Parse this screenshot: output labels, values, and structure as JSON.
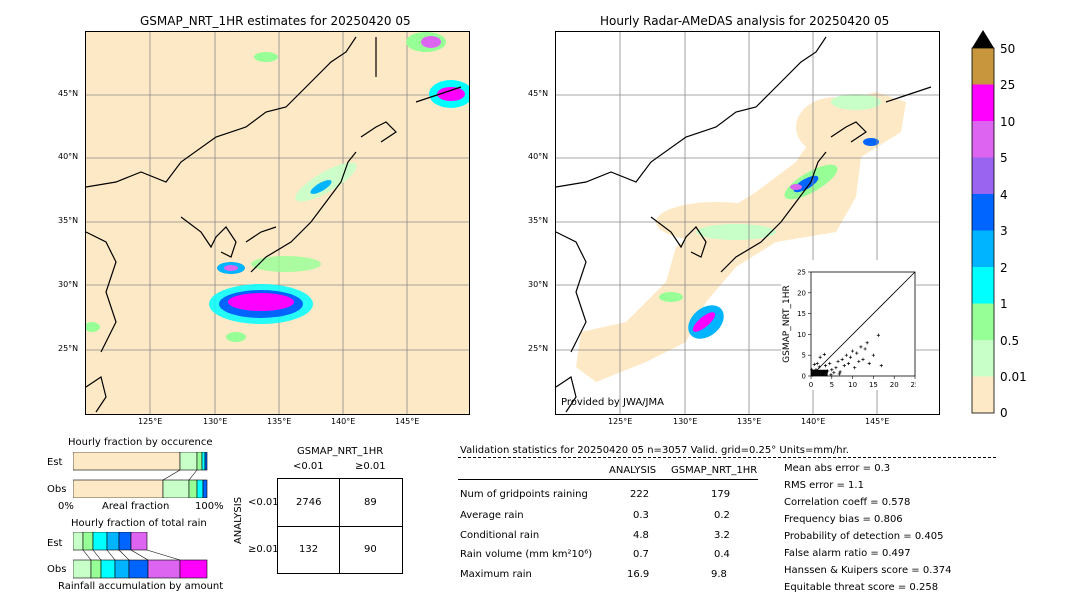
{
  "left_map": {
    "title": "GSMAP_NRT_1HR estimates for 20250420 05",
    "lat_labels": [
      "45°N",
      "40°N",
      "35°N",
      "30°N",
      "25°N"
    ],
    "lon_labels": [
      "125°E",
      "130°E",
      "135°E",
      "140°E",
      "145°E"
    ]
  },
  "right_map": {
    "title": "Hourly Radar-AMeDAS analysis for 20250420 05",
    "lat_labels": [
      "45°N",
      "40°N",
      "35°N",
      "30°N",
      "25°N"
    ],
    "lon_labels": [
      "125°E",
      "130°E",
      "135°E",
      "140°E",
      "145°E"
    ],
    "credit": "Provided by JWA/JMA"
  },
  "colorbar": {
    "labels": [
      "50",
      "25",
      "10",
      "5",
      "4",
      "3",
      "2",
      "1",
      "0.5",
      "0.01",
      "0"
    ],
    "colors": [
      "#c8963c",
      "#ff00ff",
      "#dc64f0",
      "#9a64f0",
      "#0064ff",
      "#00b4ff",
      "#00ffff",
      "#96ff96",
      "#c8ffc8",
      "#fde9c5"
    ]
  },
  "occurrence": {
    "title": "Hourly fraction by occurence",
    "row_est": "Est",
    "row_obs": "Obs",
    "axis_left": "0%",
    "axis_mid": "Areal fraction",
    "axis_right": "100%"
  },
  "total_rain": {
    "title": "Hourly fraction of total rain",
    "row_est": "Est",
    "row_obs": "Obs",
    "axis_label": "Rainfall accumulation by amount"
  },
  "contingency": {
    "title": "GSMAP_NRT_1HR",
    "col_lt": "<0.01",
    "col_ge": "≥0.01",
    "row_lt": "<0.01",
    "row_ge": "≥0.01",
    "side_label": "ANALYSIS",
    "cells": [
      "2746",
      "89",
      "132",
      "90"
    ]
  },
  "validation": {
    "header": "Validation statistics for 20250420 05  n=3057 Valid. grid=0.25° Units=mm/hr.",
    "col1": "ANALYSIS",
    "col2": "GSMAP_NRT_1HR",
    "rows": [
      {
        "label": "Num of gridpoints raining",
        "a": "222",
        "g": "179"
      },
      {
        "label": "Average rain",
        "a": "0.3",
        "g": "0.2"
      },
      {
        "label": "Conditional rain",
        "a": "4.8",
        "g": "3.2"
      },
      {
        "label": "Rain volume (mm km²10⁶)",
        "a": "0.7",
        "g": "0.4"
      },
      {
        "label": "Maximum rain",
        "a": "16.9",
        "g": "9.8"
      }
    ],
    "scores": [
      "Mean abs error =    0.3",
      "RMS error =    1.1",
      "Correlation coeff =  0.578",
      "Frequency bias =  0.806",
      "Probability of detection =  0.405",
      "False alarm ratio =  0.497",
      "Hanssen & Kuipers score =  0.374",
      "Equitable threat score =  0.258"
    ]
  },
  "chart_data": {
    "type": "scatter",
    "title": "",
    "xlabel": "ANALYSIS",
    "ylabel": "GSMAP_NRT_1HR",
    "xlim": [
      0,
      25
    ],
    "ylim": [
      0,
      25
    ],
    "xticks": [
      "0",
      "5",
      "10",
      "15",
      "20",
      "25"
    ],
    "yticks": [
      "0",
      "5",
      "10",
      "15",
      "20",
      "25"
    ],
    "points": [
      [
        0.3,
        0.2
      ],
      [
        0.5,
        0.8
      ],
      [
        1,
        0.5
      ],
      [
        1.2,
        1.5
      ],
      [
        1.8,
        0.4
      ],
      [
        2,
        2.2
      ],
      [
        2.5,
        1
      ],
      [
        3,
        0.6
      ],
      [
        3.5,
        2.5
      ],
      [
        4,
        1.2
      ],
      [
        4.5,
        3
      ],
      [
        5,
        1.5
      ],
      [
        5.5,
        0.8
      ],
      [
        6,
        2
      ],
      [
        6.5,
        3.5
      ],
      [
        7,
        1
      ],
      [
        7.5,
        4
      ],
      [
        8,
        2.5
      ],
      [
        8.5,
        5
      ],
      [
        9,
        3
      ],
      [
        9.5,
        4.5
      ],
      [
        10,
        6
      ],
      [
        10.5,
        2
      ],
      [
        11,
        5.5
      ],
      [
        11.5,
        3.5
      ],
      [
        12,
        7
      ],
      [
        12.5,
        4
      ],
      [
        13,
        6.5
      ],
      [
        13.5,
        8
      ],
      [
        14,
        3
      ],
      [
        15,
        5
      ],
      [
        16.2,
        9.8
      ],
      [
        16.9,
        2.5
      ],
      [
        1.5,
        3
      ],
      [
        2.2,
        4.5
      ],
      [
        0.8,
        2.8
      ],
      [
        3.2,
        5.2
      ],
      [
        0.2,
        1.5
      ],
      [
        4.8,
        0.3
      ],
      [
        6.8,
        0.5
      ]
    ]
  }
}
